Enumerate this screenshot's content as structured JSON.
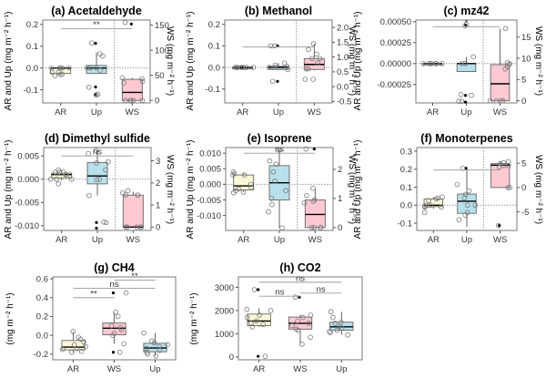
{
  "figure": {
    "y_label_left": "AR and Up (mg m⁻² h⁻¹)",
    "y_label_right": "WS (mg m⁻² h⁻¹)",
    "y_label_single": "(mg m⁻² h⁻¹)"
  },
  "colors": {
    "AR": "#fbf8d8",
    "Up": "#b8e0ea",
    "WS": "#fcc8d2",
    "point_stroke": "#777777",
    "outlier": "#000000",
    "bracket": "#999999"
  },
  "chart_data": [
    {
      "id": "a",
      "type": "box",
      "title": "(a) Acetaldehyde",
      "categories": [
        "AR",
        "Up",
        "WS"
      ],
      "ylim": [
        -0.16,
        0.22
      ],
      "yticks": [
        -0.1,
        0.0,
        0.1,
        0.2
      ],
      "ytick_labels": [
        "-0.1",
        "0.0",
        "0.1",
        "0.2"
      ],
      "right_axis": {
        "for": "WS",
        "ylim": [
          -5,
          160
        ],
        "yticks": [
          0,
          50,
          100,
          150
        ],
        "ytick_labels": [
          "0",
          "50",
          "100",
          "150"
        ]
      },
      "boxes": [
        {
          "group": "AR",
          "q1": -0.025,
          "median": 0.0,
          "q3": 0.0,
          "whisker_low": -0.03,
          "whisker_high": 0.002,
          "points": [
            -0.03,
            -0.028,
            -0.02,
            -0.035,
            0.0,
            0.0,
            0.0,
            0.001,
            0.0,
            -0.02
          ],
          "outliers": []
        },
        {
          "group": "Up",
          "q1": -0.025,
          "median": 0.0,
          "q3": 0.012,
          "whisker_low": -0.025,
          "whisker_high": 0.07,
          "points": [
            0.115,
            0.055,
            0.065,
            0.0,
            0.0,
            0.0,
            -0.01,
            -0.088,
            -0.12,
            -0.123
          ],
          "outliers": [
            0.113,
            -0.087,
            -0.122
          ]
        },
        {
          "group": "WS",
          "q1": 0,
          "median": 16,
          "q3": 42,
          "whisker_low": 0,
          "whisker_high": 45,
          "points": [
            155,
            45,
            43,
            38,
            35,
            0,
            0,
            0,
            0,
            0
          ],
          "outliers": [
            152
          ]
        }
      ],
      "annotations": [
        {
          "text": "**",
          "from": "AR",
          "to": "WS",
          "y": 0.18
        }
      ],
      "grid": "dotted zero line and group divider"
    },
    {
      "id": "b",
      "type": "box",
      "title": "(b) Methanol",
      "categories": [
        "AR",
        "Up",
        "WS"
      ],
      "ylim": [
        -0.165,
        0.22
      ],
      "yticks": [
        -0.1,
        0.0,
        0.1,
        0.2
      ],
      "ytick_labels": [
        "-0.1",
        "0.0",
        "0.1",
        "0.2"
      ],
      "right_axis": {
        "for": "WS",
        "ylim": [
          -0.55,
          2.25
        ],
        "yticks": [
          -0.5,
          0.0,
          0.5,
          1.0,
          1.5,
          2.0
        ],
        "ytick_labels": [
          "-0.5",
          "0.0",
          "0.5",
          "1.0",
          "1.5",
          "2.0"
        ]
      },
      "boxes": [
        {
          "group": "AR",
          "q1": 0.0,
          "median": 0.0,
          "q3": 0.0,
          "whisker_low": 0.0,
          "whisker_high": 0.0,
          "points": [
            0.0,
            0.0,
            0.0,
            0.0,
            0.0,
            0.0,
            0.0
          ],
          "outliers": [
            0.0,
            0.0
          ]
        },
        {
          "group": "Up",
          "q1": -0.01,
          "median": 0.0,
          "q3": 0.005,
          "whisker_low": -0.01,
          "whisker_high": 0.02,
          "points": [
            0.1,
            0.1,
            0.02,
            0.01,
            0.0,
            0.0,
            -0.01,
            -0.065,
            0.005
          ],
          "outliers": [
            0.1,
            -0.065
          ]
        },
        {
          "group": "WS",
          "q1": 0.58,
          "median": 0.75,
          "q3": 0.95,
          "whisker_low": 0.55,
          "whisker_high": 1.45,
          "points": [
            1.45,
            1.25,
            1.1,
            0.95,
            0.95,
            0.8,
            0.6,
            0.6,
            0.25,
            0.25
          ],
          "outliers": []
        }
      ],
      "annotations": [
        {
          "text": "",
          "from": "AR",
          "to": "WS",
          "y": 0.095
        }
      ],
      "grid": "dotted zero line and group divider"
    },
    {
      "id": "c",
      "type": "box",
      "title": "(c) mz42",
      "categories": [
        "AR",
        "Up",
        "WS"
      ],
      "ylim": [
        -0.00047,
        0.00052
      ],
      "yticks": [
        -0.00025,
        0.0,
        0.00025,
        0.0005
      ],
      "ytick_labels": [
        "-0.00025",
        "0.00000",
        "0.00025",
        "0.00050"
      ],
      "right_axis": {
        "for": "WS",
        "ylim": [
          -0.5,
          19
        ],
        "yticks": [
          0,
          5,
          10,
          15
        ],
        "ytick_labels": [
          "0",
          "5",
          "10",
          "15"
        ]
      },
      "boxes": [
        {
          "group": "AR",
          "q1": 0.0,
          "median": 0.0,
          "q3": 0.0,
          "whisker_low": 0.0,
          "whisker_high": 0.0,
          "points": [
            0.0,
            0.0,
            0.0,
            0.0,
            0.0,
            0.0,
            0.0
          ],
          "outliers": []
        },
        {
          "group": "Up",
          "q1": -9.5e-05,
          "median": 0.0,
          "q3": 0.0,
          "whisker_low": -9.5e-05,
          "whisker_high": 8e-05,
          "points": [
            0.00047,
            0.00045,
            8e-05,
            0.0,
            0.0,
            0.0,
            -0.00037,
            -0.00038,
            -0.00045,
            -0.00045
          ],
          "outliers": [
            0.00046,
            -0.00038,
            -0.00046
          ]
        },
        {
          "group": "WS",
          "q1": 0,
          "median": 4,
          "q3": 8.5,
          "whisker_low": 0,
          "whisker_high": 17,
          "points": [
            17,
            9,
            8.7,
            8.5,
            8.0,
            7.5,
            0,
            0,
            0,
            0
          ],
          "outliers": []
        }
      ],
      "annotations": [
        {
          "text": "*",
          "from": "AR",
          "to": "WS",
          "y": 0.00044
        }
      ],
      "grid": "dotted zero line and group divider"
    },
    {
      "id": "d",
      "type": "box",
      "title": "(d) Dimethyl sulfide",
      "categories": [
        "AR",
        "Up",
        "WS"
      ],
      "ylim": [
        -0.011,
        0.0068
      ],
      "yticks": [
        -0.01,
        -0.005,
        0.0,
        0.005
      ],
      "ytick_labels": [
        "-0.010",
        "-0.005",
        "0.000",
        "0.005"
      ],
      "right_axis": {
        "for": "WS",
        "ylim": [
          -0.15,
          3.6
        ],
        "yticks": [
          0,
          1,
          2,
          3
        ],
        "ytick_labels": [
          "0",
          "1",
          "2",
          "3"
        ]
      },
      "boxes": [
        {
          "group": "AR",
          "q1": 0.0003,
          "median": 0.001,
          "q3": 0.0013,
          "whisker_low": -0.0003,
          "whisker_high": 0.002,
          "points": [
            0.002,
            0.0015,
            0.0015,
            0.001,
            0.0008,
            0.0,
            0.0,
            0.0,
            -0.001,
            0.0015
          ],
          "outliers": []
        },
        {
          "group": "Up",
          "q1": -0.001,
          "median": 0.0007,
          "q3": 0.0036,
          "whisker_low": -0.0035,
          "whisker_high": 0.0062,
          "points": [
            0.0062,
            0.0055,
            0.0037,
            0.0035,
            0.002,
            0.0,
            -0.0001,
            -0.0035,
            -0.0092,
            -0.0093
          ],
          "outliers": [
            -0.0093,
            -0.0105
          ]
        },
        {
          "group": "WS",
          "q1": 0.0,
          "median": 0.0,
          "q3": 1.45,
          "whisker_low": 0.0,
          "whisker_high": 1.6,
          "points": [
            1.65,
            1.55,
            1.45,
            1.45,
            1.45,
            0,
            0,
            0,
            0,
            0
          ],
          "outliers": []
        }
      ],
      "annotations": [
        {
          "text": "ns",
          "from": "AR",
          "to": "WS",
          "y": 0.005
        }
      ],
      "grid": "dotted zero line and group divider"
    },
    {
      "id": "e",
      "type": "box",
      "title": "(e) Isoprene",
      "categories": [
        "AR",
        "Up",
        "WS"
      ],
      "ylim": [
        -0.0148,
        0.0118
      ],
      "yticks": [
        -0.01,
        -0.005,
        0.0,
        0.005,
        0.01
      ],
      "ytick_labels": [
        "-0.010",
        "-0.005",
        "0.000",
        "0.005",
        "0.010"
      ],
      "right_axis": {
        "for": "WS",
        "ylim": [
          -0.1,
          2.75
        ],
        "yticks": [
          0,
          1,
          2
        ],
        "ytick_labels": [
          "0",
          "1",
          "2"
        ]
      },
      "boxes": [
        {
          "group": "AR",
          "q1": -0.0018,
          "median": -0.0005,
          "q3": 0.003,
          "whisker_low": -0.0025,
          "whisker_high": 0.0035,
          "points": [
            0.004,
            0.0035,
            0.003,
            0.003,
            0.0,
            -0.001,
            -0.002,
            -0.0025,
            -0.0027,
            -0.0015
          ],
          "outliers": []
        },
        {
          "group": "Up",
          "q1": -0.005,
          "median": 0.0005,
          "q3": 0.006,
          "whisker_low": -0.014,
          "whisker_high": 0.011,
          "points": [
            0.011,
            0.0075,
            0.0065,
            0.004,
            0.001,
            -0.002,
            -0.0045,
            -0.0065,
            -0.0088,
            -0.014
          ],
          "outliers": []
        },
        {
          "group": "WS",
          "q1": 0.0,
          "median": 0.45,
          "q3": 0.95,
          "whisker_low": 0.0,
          "whisker_high": 1.35,
          "points": [
            2.7,
            1.35,
            1.1,
            0.95,
            0.9,
            0.85,
            0,
            0,
            0,
            0
          ],
          "outliers": [
            2.7
          ]
        }
      ],
      "annotations": [
        {
          "text": "ns",
          "from": "AR",
          "to": "WS",
          "y": 0.01
        }
      ],
      "grid": "dotted zero line and group divider"
    },
    {
      "id": "f",
      "type": "box",
      "title": "(f) Monoterpenes",
      "categories": [
        "AR",
        "Up",
        "WS"
      ],
      "ylim": [
        -0.14,
        0.32
      ],
      "yticks": [
        -0.1,
        0.0,
        0.1,
        0.2,
        0.3
      ],
      "ytick_labels": [
        "-0.1",
        "0.0",
        "0.1",
        "0.2",
        "0.3"
      ],
      "right_axis": {
        "for": "WS",
        "ylim": [
          -8.8,
          8.2
        ],
        "yticks": [
          -5,
          0,
          5
        ],
        "ytick_labels": [
          "-5",
          "0",
          "5"
        ]
      },
      "boxes": [
        {
          "group": "AR",
          "q1": -0.008,
          "median": 0.0,
          "q3": 0.035,
          "whisker_low": -0.02,
          "whisker_high": 0.045,
          "points": [
            0.045,
            0.04,
            0.035,
            0.025,
            0.0,
            -0.005,
            -0.01,
            -0.01,
            -0.04,
            0.0
          ],
          "outliers": []
        },
        {
          "group": "Up",
          "q1": -0.045,
          "median": 0.022,
          "q3": 0.062,
          "whisker_low": -0.12,
          "whisker_high": 0.205,
          "points": [
            0.205,
            0.115,
            0.08,
            0.06,
            0.04,
            0.0,
            0.0,
            -0.04,
            -0.055,
            -0.08
          ],
          "outliers": [
            0.205
          ]
        },
        {
          "group": "WS",
          "q1": 0.0,
          "median": 4.6,
          "q3": 4.9,
          "whisker_low": 0.0,
          "whisker_high": 5.3,
          "points": [
            5.3,
            5.1,
            4.9,
            4.5,
            4.5,
            4.2,
            0,
            0,
            -7.8
          ],
          "outliers": [
            -7.8
          ]
        }
      ],
      "annotations": [
        {
          "text": "",
          "from": "AR",
          "to": "WS",
          "y": 0.195
        }
      ],
      "grid": "dotted zero line and group divider"
    },
    {
      "id": "g",
      "type": "box",
      "title": "(g) CH4",
      "categories": [
        "AR",
        "WS",
        "Up"
      ],
      "ylim": [
        -0.26,
        0.62
      ],
      "yticks": [
        -0.2,
        0.0,
        0.2,
        0.4,
        0.6
      ],
      "ytick_labels": [
        "-0.2",
        "0.0",
        "0.2",
        "0.4",
        "0.6"
      ],
      "boxes": [
        {
          "group": "AR",
          "q1": -0.155,
          "median": -0.125,
          "q3": -0.055,
          "whisker_low": -0.18,
          "whisker_high": 0.035,
          "points": [
            0.04,
            -0.02,
            -0.04,
            -0.07,
            -0.1,
            -0.12,
            -0.14,
            -0.17,
            -0.18,
            -0.15
          ],
          "outliers": []
        },
        {
          "group": "WS",
          "q1": 0.005,
          "median": 0.075,
          "q3": 0.13,
          "whisker_low": -0.09,
          "whisker_high": 0.24,
          "points": [
            0.45,
            0.245,
            0.2,
            0.1,
            0.08,
            0.06,
            0.02,
            0.0,
            -0.09,
            -0.18
          ],
          "outliers": [
            0.45,
            -0.18
          ]
        },
        {
          "group": "Up",
          "q1": -0.175,
          "median": -0.135,
          "q3": -0.085,
          "whisker_low": -0.22,
          "whisker_high": 0.025,
          "points": [
            0.025,
            -0.06,
            -0.08,
            -0.1,
            -0.12,
            -0.14,
            -0.16,
            -0.18,
            -0.2,
            -0.22
          ],
          "outliers": []
        }
      ],
      "annotations": [
        {
          "text": "**",
          "from": "WS",
          "to": "Up",
          "y": 0.585
        },
        {
          "text": "ns",
          "from": "AR",
          "to": "Up",
          "y": 0.5
        },
        {
          "text": "**",
          "from": "AR",
          "to": "WS",
          "y": 0.4
        }
      ]
    },
    {
      "id": "h",
      "type": "box",
      "title": "(h) CO2",
      "categories": [
        "AR",
        "WS",
        "Up"
      ],
      "ylim": [
        -120,
        3450
      ],
      "yticks": [
        0,
        1000,
        2000,
        3000
      ],
      "ytick_labels": [
        "0",
        "1000",
        "2000",
        "3000"
      ],
      "boxes": [
        {
          "group": "AR",
          "q1": 1350,
          "median": 1550,
          "q3": 1850,
          "whisker_low": 1300,
          "whisker_high": 2100,
          "points": [
            2900,
            2050,
            2000,
            1800,
            1700,
            1550,
            1450,
            1400,
            1300,
            30
          ],
          "outliers": [
            2900,
            30
          ]
        },
        {
          "group": "WS",
          "q1": 1200,
          "median": 1450,
          "q3": 1720,
          "whisker_low": 550,
          "whisker_high": 1800,
          "points": [
            2580,
            1800,
            1700,
            1550,
            1450,
            1350,
            1200,
            1150,
            850,
            550
          ],
          "outliers": [
            2580
          ]
        },
        {
          "group": "Up",
          "q1": 1150,
          "median": 1300,
          "q3": 1500,
          "whisker_low": 950,
          "whisker_high": 1950,
          "points": [
            1950,
            1700,
            1500,
            1450,
            1300,
            1250,
            1150,
            1100,
            1050,
            950
          ],
          "outliers": []
        }
      ],
      "annotations": [
        {
          "text": "ns",
          "from": "AR",
          "to": "Up",
          "y": 3220
        },
        {
          "text": "ns",
          "from": "AR",
          "to": "WS",
          "y": 2620
        },
        {
          "text": "ns",
          "from": "WS",
          "to": "Up",
          "y": 2750
        }
      ]
    }
  ]
}
